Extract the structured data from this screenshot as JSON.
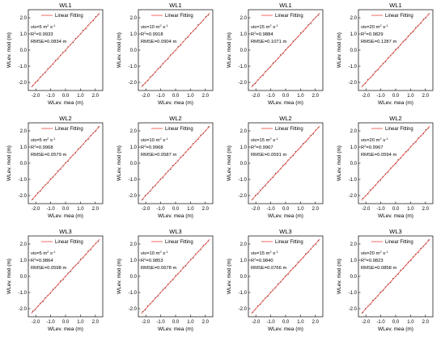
{
  "style": {
    "fit_color": "#e8463c",
    "point_color": "#333333",
    "axis_color": "#000000"
  },
  "legend_label": "Linear Fitting",
  "xlabel": "WLev. mea (m)",
  "ylabel": "WLev. mod (m)",
  "ticks": [
    "-2.0",
    "-1.0",
    "0.0",
    "1.0",
    "2.0"
  ],
  "chart_data": [
    {
      "type": "scatter",
      "title": "WL1",
      "vis_value": "5",
      "r2": "0.9933",
      "rmse": "0.0834",
      "xlim": [
        -2.5,
        2.5
      ],
      "ylim": [
        -2.5,
        2.5
      ],
      "grid": false,
      "legend": "top-right"
    },
    {
      "type": "scatter",
      "title": "WL1",
      "vis_value": "10",
      "r2": "0.9918",
      "rmse": "0.0904",
      "xlim": [
        -2.5,
        2.5
      ],
      "ylim": [
        -2.5,
        2.5
      ],
      "grid": false,
      "legend": "top-right"
    },
    {
      "type": "scatter",
      "title": "WL1",
      "vis_value": "15",
      "r2": "0.9884",
      "rmse": "0.1071",
      "xlim": [
        -2.5,
        2.5
      ],
      "ylim": [
        -2.5,
        2.5
      ],
      "grid": false,
      "legend": "top-right"
    },
    {
      "type": "scatter",
      "title": "WL1",
      "vis_value": "20",
      "r2": "0.9829",
      "rmse": "0.1287",
      "xlim": [
        -2.5,
        2.5
      ],
      "ylim": [
        -2.5,
        2.5
      ],
      "grid": false,
      "legend": "top-right"
    },
    {
      "type": "scatter",
      "title": "WL2",
      "vis_value": "5",
      "r2": "0.9968",
      "rmse": "0.0579",
      "xlim": [
        -2.5,
        2.5
      ],
      "ylim": [
        -2.5,
        2.5
      ],
      "grid": false,
      "legend": "top-right"
    },
    {
      "type": "scatter",
      "title": "WL2",
      "vis_value": "10",
      "r2": "0.9968",
      "rmse": "0.0587",
      "xlim": [
        -2.5,
        2.5
      ],
      "ylim": [
        -2.5,
        2.5
      ],
      "grid": false,
      "legend": "top-right"
    },
    {
      "type": "scatter",
      "title": "WL2",
      "vis_value": "15",
      "r2": "0.9967",
      "rmse": "0.0591",
      "xlim": [
        -2.5,
        2.5
      ],
      "ylim": [
        -2.5,
        2.5
      ],
      "grid": false,
      "legend": "top-right"
    },
    {
      "type": "scatter",
      "title": "WL2",
      "vis_value": "20",
      "r2": "0.9967",
      "rmse": "0.0594",
      "xlim": [
        -2.5,
        2.5
      ],
      "ylim": [
        -2.5,
        2.5
      ],
      "grid": false,
      "legend": "top-right"
    },
    {
      "type": "scatter",
      "title": "WL3",
      "vis_value": "5",
      "r2": "0.9864",
      "rmse": "0.0598",
      "xlim": [
        -2.5,
        2.5
      ],
      "ylim": [
        -2.5,
        2.5
      ],
      "grid": false,
      "legend": "top-right"
    },
    {
      "type": "scatter",
      "title": "WL3",
      "vis_value": "10",
      "r2": "0.9853",
      "rmse": "0.0678",
      "xlim": [
        -2.5,
        2.5
      ],
      "ylim": [
        -2.5,
        2.5
      ],
      "grid": false,
      "legend": "top-right"
    },
    {
      "type": "scatter",
      "title": "WL3",
      "vis_value": "15",
      "r2": "0.9840",
      "rmse": "0.0766",
      "xlim": [
        -2.5,
        2.5
      ],
      "ylim": [
        -2.5,
        2.5
      ],
      "grid": false,
      "legend": "top-right"
    },
    {
      "type": "scatter",
      "title": "WL3",
      "vis_value": "20",
      "r2": "0.9823",
      "rmse": "0.0858",
      "xlim": [
        -2.5,
        2.5
      ],
      "ylim": [
        -2.5,
        2.5
      ],
      "grid": false,
      "legend": "top-right"
    }
  ]
}
